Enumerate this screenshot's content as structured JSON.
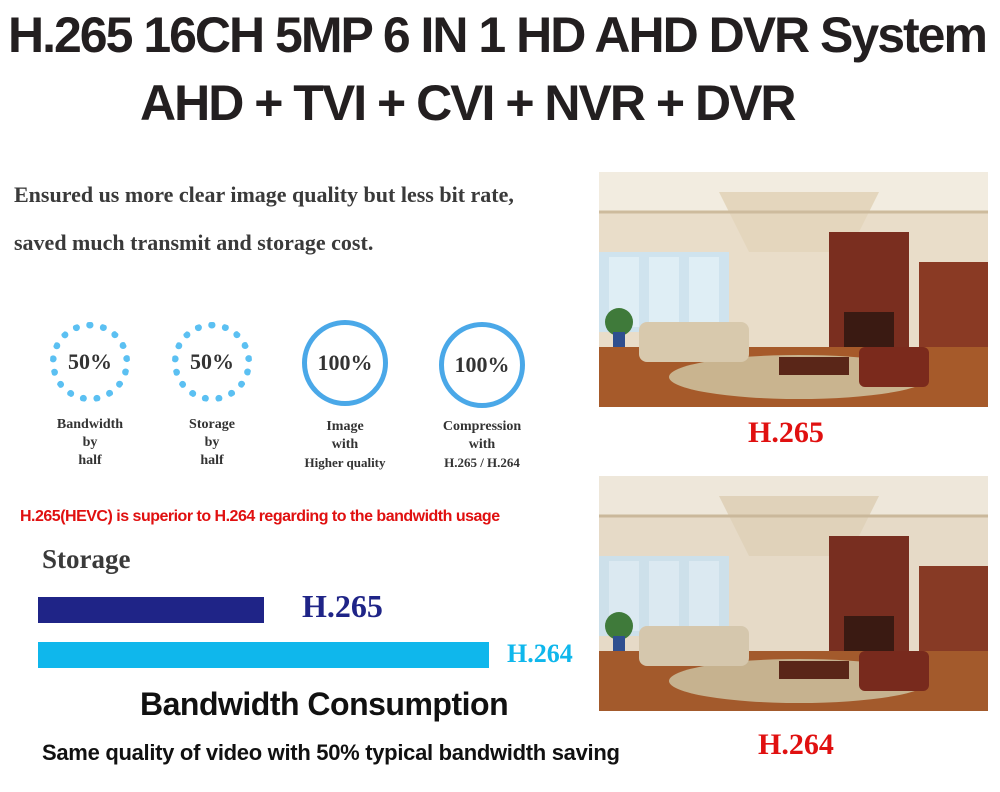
{
  "header": {
    "title_line1": "H.265 16CH 5MP 6 IN 1 HD AHD DVR System",
    "title_line2": "AHD + TVI + CVI + NVR + DVR"
  },
  "intro": {
    "line1": "Ensured us more clear image quality but less bit rate,",
    "line2": "saved much transmit and storage cost."
  },
  "stats": [
    {
      "value": "50%",
      "caption": [
        "Bandwidth",
        "by",
        "half"
      ]
    },
    {
      "value": "50%",
      "caption": [
        "Storage",
        "by",
        "half"
      ]
    },
    {
      "value": "100%",
      "caption": [
        "Image",
        "with",
        "Higher quality"
      ]
    },
    {
      "value": "100%",
      "caption": [
        "Compression",
        "with",
        "H.265 / H.264"
      ]
    }
  ],
  "comparison": {
    "note": "H.265(HEVC) is superior to H.264 regarding to the bandwidth usage",
    "storage_label": "Storage",
    "bars": [
      {
        "label": "H.265",
        "relative_value": 0.5,
        "color": "#1f2487"
      },
      {
        "label": "H.264",
        "relative_value": 1.0,
        "color": "#0fb7ec"
      }
    ],
    "heading": "Bandwidth Consumption",
    "subtext": "Same quality of video with 50% typical bandwidth saving"
  },
  "photos": [
    {
      "label": "H.265"
    },
    {
      "label": "H.264"
    }
  ],
  "colors": {
    "accent_red": "#e01010",
    "ring_blue": "#4aa8e8",
    "h265_navy": "#1f2487",
    "h264_cyan": "#0fb7ec"
  }
}
